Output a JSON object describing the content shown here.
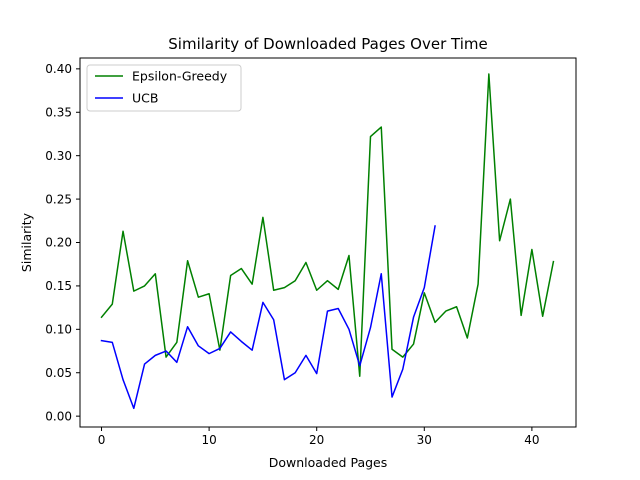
{
  "chart_data": {
    "type": "line",
    "title": "Similarity of Downloaded Pages Over Time",
    "xlabel": "Downloaded Pages",
    "ylabel": "Similarity",
    "xlim": [
      -2,
      44.1
    ],
    "ylim": [
      -0.0125,
      0.4125
    ],
    "xticks": [
      0,
      10,
      20,
      30,
      40
    ],
    "yticks": [
      0.0,
      0.05,
      0.1,
      0.15,
      0.2,
      0.25,
      0.3,
      0.35,
      0.4
    ],
    "ytick_labels": [
      "0.00",
      "0.05",
      "0.10",
      "0.15",
      "0.20",
      "0.25",
      "0.30",
      "0.35",
      "0.40"
    ],
    "grid": false,
    "legend": "top-left",
    "series": [
      {
        "name": "Epsilon-Greedy",
        "color": "#008000",
        "x": [
          0,
          1,
          2,
          3,
          4,
          5,
          6,
          7,
          8,
          9,
          10,
          11,
          12,
          13,
          14,
          15,
          16,
          17,
          18,
          19,
          20,
          21,
          22,
          23,
          24,
          25,
          26,
          27,
          28,
          29,
          30,
          31,
          32,
          33,
          34,
          35,
          36,
          37,
          38,
          39,
          40,
          41,
          42
        ],
        "values": [
          0.114,
          0.129,
          0.213,
          0.144,
          0.15,
          0.164,
          0.068,
          0.085,
          0.179,
          0.137,
          0.141,
          0.076,
          0.162,
          0.17,
          0.152,
          0.229,
          0.145,
          0.148,
          0.156,
          0.177,
          0.145,
          0.156,
          0.146,
          0.185,
          0.046,
          0.322,
          0.333,
          0.077,
          0.068,
          0.083,
          0.142,
          0.108,
          0.121,
          0.126,
          0.09,
          0.152,
          0.394,
          0.202,
          0.25,
          0.116,
          0.192,
          0.115,
          0.178
        ]
      },
      {
        "name": "UCB",
        "color": "#0000ff",
        "x": [
          0,
          1,
          2,
          3,
          4,
          5,
          6,
          7,
          8,
          9,
          10,
          11,
          12,
          13,
          14,
          15,
          16,
          17,
          18,
          19,
          20,
          21,
          22,
          23,
          24,
          25,
          26,
          27,
          28,
          29,
          30,
          31
        ],
        "values": [
          0.087,
          0.085,
          0.042,
          0.009,
          0.06,
          0.07,
          0.075,
          0.062,
          0.103,
          0.081,
          0.072,
          0.078,
          0.097,
          0.086,
          0.076,
          0.131,
          0.111,
          0.042,
          0.05,
          0.07,
          0.049,
          0.121,
          0.124,
          0.1,
          0.058,
          0.102,
          0.164,
          0.022,
          0.054,
          0.114,
          0.148,
          0.219
        ]
      }
    ]
  }
}
